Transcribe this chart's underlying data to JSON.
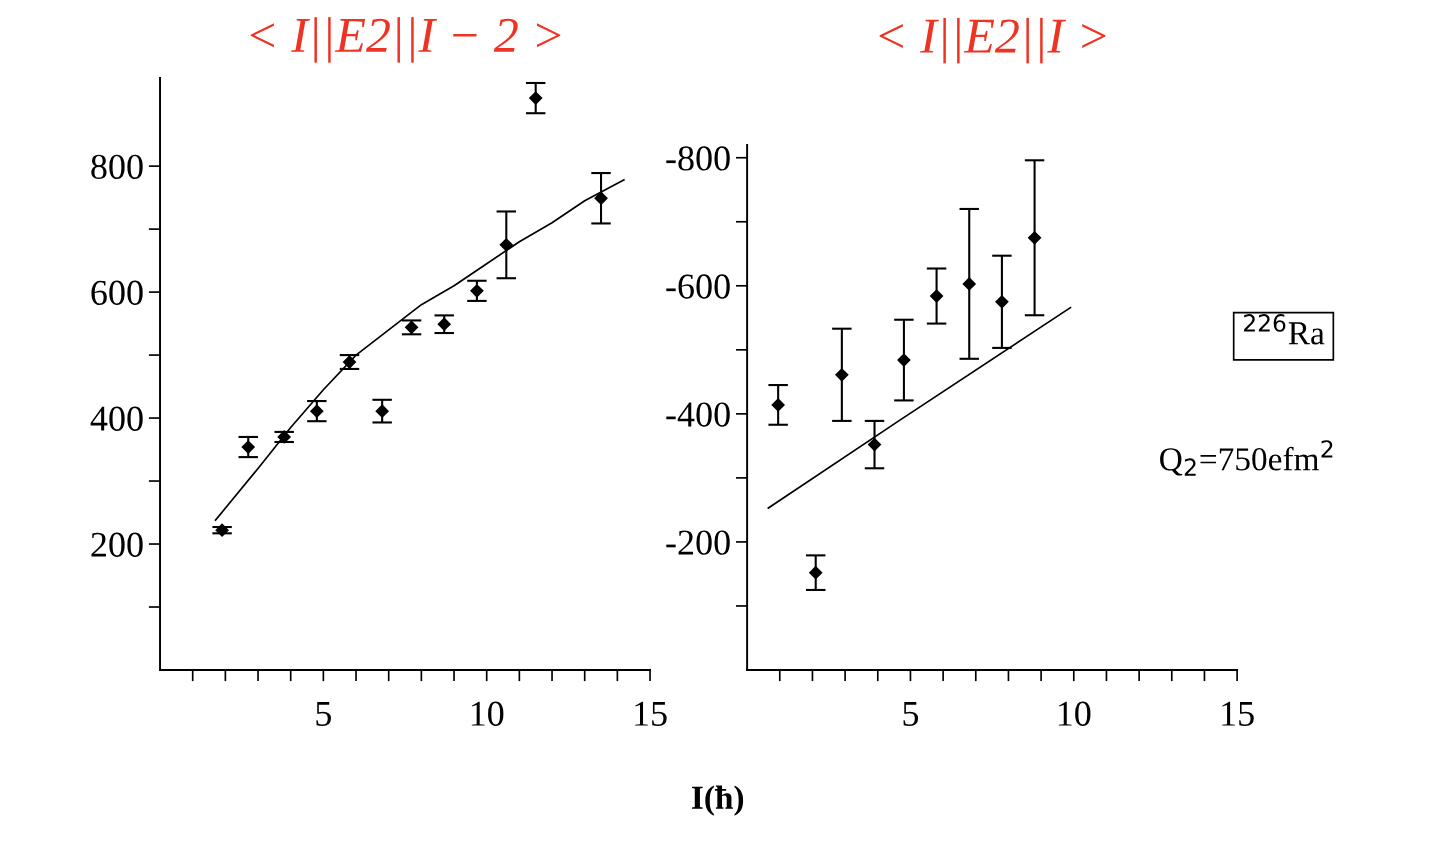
{
  "chart_data": [
    {
      "type": "scatter",
      "title": "< I||E2||I − 2 >",
      "xlim": [
        0,
        15
      ],
      "ylim": [
        0,
        940
      ],
      "xticks": [
        {
          "value": 1,
          "label": null
        },
        {
          "value": 2,
          "label": null
        },
        {
          "value": 3,
          "label": null
        },
        {
          "value": 4,
          "label": null
        },
        5,
        {
          "value": 6,
          "label": null
        },
        {
          "value": 7,
          "label": null
        },
        {
          "value": 8,
          "label": null
        },
        {
          "value": 9,
          "label": null
        },
        10,
        {
          "value": 11,
          "label": null
        },
        {
          "value": 12,
          "label": null
        },
        {
          "value": 13,
          "label": null
        },
        {
          "value": 14,
          "label": null
        },
        15
      ],
      "yticks": [
        {
          "value": 100,
          "label": null
        },
        200,
        {
          "value": 300,
          "label": null
        },
        400,
        {
          "value": 500,
          "label": null
        },
        600,
        {
          "value": 700,
          "label": null
        },
        800
      ],
      "grid": false,
      "legend": false,
      "series": [
        {
          "color": "#000000",
          "marker": "diamond",
          "x": [
            1.9,
            2.7,
            3.8,
            4.8,
            5.8,
            6.8,
            7.7,
            8.7,
            9.7,
            10.6,
            11.5,
            13.5
          ],
          "values": [
            222,
            354,
            370,
            411,
            489,
            411,
            544,
            549,
            602,
            675,
            908,
            749
          ],
          "errors": [
            5,
            16,
            8,
            16,
            11,
            18,
            11,
            14,
            16,
            53,
            24,
            40
          ]
        },
        {
          "type": "line",
          "color": "#000000",
          "x": [
            1.7,
            3,
            4,
            5,
            6,
            7,
            8,
            9,
            10,
            11,
            12,
            13,
            14.2
          ],
          "values": [
            238,
            320,
            385,
            445,
            500,
            540,
            580,
            610,
            645,
            680,
            710,
            745,
            778
          ]
        }
      ]
    },
    {
      "type": "scatter",
      "title": "< I||E2||I >",
      "xlabel": "I(ħ)",
      "xlim": [
        0,
        15
      ],
      "ylim": [
        0,
        -820
      ],
      "xticks": [
        {
          "value": 1,
          "label": null
        },
        {
          "value": 2,
          "label": null
        },
        {
          "value": 3,
          "label": null
        },
        {
          "value": 4,
          "label": null
        },
        5,
        {
          "value": 6,
          "label": null
        },
        {
          "value": 7,
          "label": null
        },
        {
          "value": 8,
          "label": null
        },
        {
          "value": 9,
          "label": null
        },
        10,
        {
          "value": 11,
          "label": null
        },
        {
          "value": 12,
          "label": null
        },
        {
          "value": 13,
          "label": null
        },
        {
          "value": 14,
          "label": null
        },
        15
      ],
      "yticks": [
        {
          "value": -100,
          "label": null
        },
        -200,
        {
          "value": -300,
          "label": null
        },
        -400,
        {
          "value": -500,
          "label": null
        },
        -600,
        {
          "value": -700,
          "label": null
        },
        -800
      ],
      "grid": false,
      "legend": false,
      "annotations": [
        "$^{226}$Ra",
        "Q$_{2}$=750efm$^{2}$"
      ],
      "series": [
        {
          "color": "#000000",
          "marker": "diamond",
          "x": [
            0.95,
            2.1,
            2.9,
            3.9,
            4.8,
            5.8,
            6.8,
            7.8,
            8.8
          ],
          "values": [
            -414,
            -152,
            -461,
            -352,
            -484,
            -584,
            -603,
            -575,
            -675
          ],
          "errors": [
            31,
            27,
            72,
            37,
            63,
            43,
            117,
            72,
            121
          ]
        },
        {
          "type": "line",
          "color": "#000000",
          "x": [
            0.65,
            4.7,
            9.9
          ],
          "values": [
            -253,
            -391,
            -566
          ]
        }
      ]
    }
  ]
}
